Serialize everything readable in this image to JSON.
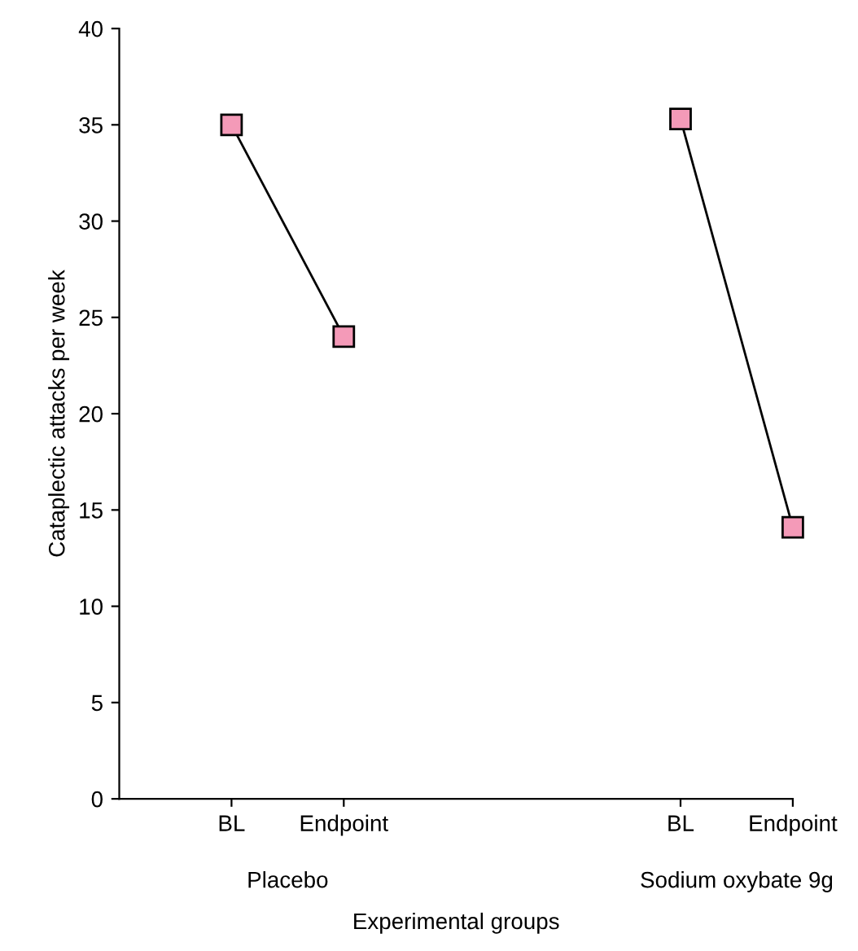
{
  "chart_data": {
    "type": "line",
    "xlabel": "Experimental groups",
    "ylabel": "Cataplectic attacks per week",
    "categories": [
      "BL",
      "Endpoint",
      null,
      null,
      "BL",
      "Endpoint"
    ],
    "series": [
      {
        "color": "#f49ab8",
        "values": [
          35,
          24,
          null,
          null,
          null,
          null
        ]
      },
      {
        "color": "#f49ab8",
        "values": [
          null,
          null,
          null,
          null,
          35.3,
          14.1
        ]
      }
    ],
    "annotations": [
      "Placebo",
      "Sodium oxybate 9g"
    ],
    "ylim": [
      0,
      40
    ],
    "yticks": [
      0,
      5,
      10,
      15,
      20,
      25,
      30,
      35,
      40
    ],
    "marker": "square",
    "line_style": "solid",
    "grid": false,
    "legend": false
  }
}
